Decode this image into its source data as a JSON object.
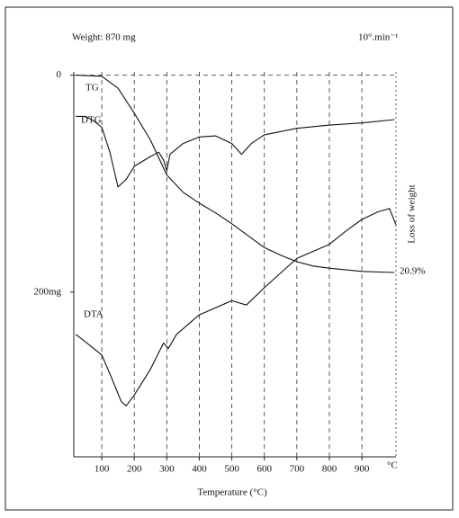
{
  "chart_data": {
    "type": "line",
    "title": "Weight: 870 mg",
    "subtitle": "10°.min⁻¹",
    "x_label": "Temperature (°C)",
    "x_unit": "°C",
    "y_label": "Loss of weight",
    "annotation": "20.9%",
    "xlim": [
      14,
      1005
    ],
    "xticks": [
      100,
      200,
      300,
      400,
      500,
      600,
      700,
      800,
      900
    ],
    "ylim": [
      352,
      -3
    ],
    "yticks": [
      0,
      {
        "value": 200,
        "label": "200mg"
      }
    ],
    "grid": true,
    "series": [
      {
        "name": "TG",
        "color": "#111111",
        "x": [
          20,
          100,
          150,
          200,
          250,
          300,
          350,
          400,
          450,
          500,
          550,
          600,
          650,
          700,
          750,
          800,
          900,
          1000
        ],
        "values": [
          0,
          1,
          12,
          35,
          60,
          92,
          108,
          118,
          127,
          137,
          148,
          159,
          166,
          172,
          176,
          178,
          181,
          182
        ]
      },
      {
        "name": "DTG",
        "color": "#111111",
        "x": [
          20,
          50,
          75,
          100,
          125,
          150,
          175,
          200,
          250,
          275,
          290,
          300,
          310,
          350,
          400,
          450,
          500,
          530,
          560,
          600,
          700,
          800,
          900,
          1000
        ],
        "values": [
          38,
          38,
          42,
          48,
          71,
          103,
          96,
          84,
          75,
          71,
          78,
          88,
          73,
          63,
          57,
          56,
          63,
          73,
          63,
          55,
          49,
          46,
          44,
          41
        ]
      },
      {
        "name": "DTA",
        "color": "#111111",
        "x": [
          20,
          50,
          100,
          130,
          160,
          175,
          200,
          250,
          290,
          305,
          330,
          400,
          500,
          545,
          600,
          700,
          800,
          850,
          900,
          950,
          985,
          1005
        ],
        "values": [
          239,
          246,
          258,
          279,
          301,
          305,
          295,
          271,
          247,
          252,
          239,
          221,
          208,
          212,
          196,
          169,
          156,
          144,
          133,
          126,
          123,
          138
        ]
      }
    ]
  }
}
